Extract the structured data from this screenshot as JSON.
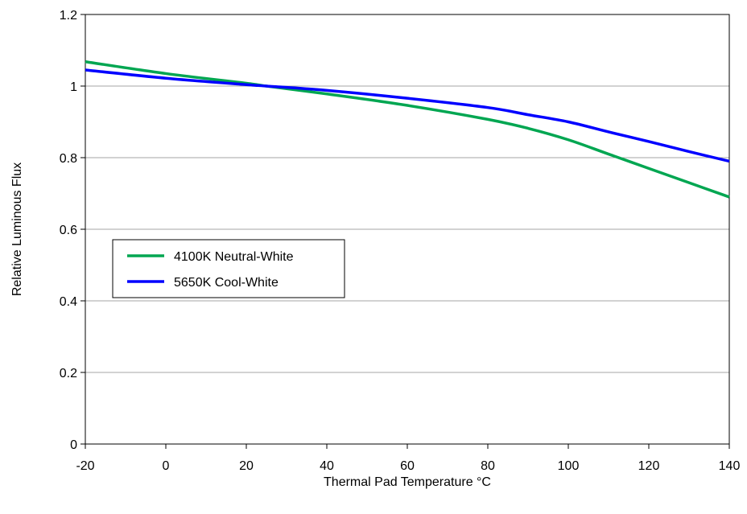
{
  "chart_data": {
    "type": "line",
    "title": "",
    "xlabel": "Thermal Pad Temperature °C",
    "ylabel": "Relative Luminous Flux",
    "xlim": [
      -20,
      140
    ],
    "ylim": [
      0,
      1.2
    ],
    "xticks": [
      -20,
      0,
      20,
      40,
      60,
      80,
      100,
      120,
      140
    ],
    "xtick_labels": [
      "-20",
      "0",
      "20",
      "40",
      "60",
      "80",
      "100",
      "120",
      "140"
    ],
    "yticks": [
      0,
      0.2,
      0.4,
      0.6,
      0.8,
      1,
      1.2
    ],
    "ytick_labels": [
      "0",
      "0.2",
      "0.4",
      "0.6",
      "0.8",
      "1",
      "1.2"
    ],
    "grid": "horizontal",
    "legend_position": "middle-left",
    "series": [
      {
        "name": "4100K Neutral-White",
        "color": "#00a651",
        "x": [
          -20,
          0,
          20,
          25,
          40,
          60,
          80,
          90,
          100,
          110,
          120,
          130,
          140
        ],
        "y": [
          1.068,
          1.035,
          1.008,
          1.0,
          0.978,
          0.946,
          0.907,
          0.882,
          0.85,
          0.81,
          0.77,
          0.73,
          0.69
        ]
      },
      {
        "name": "5650K Cool-White",
        "color": "#0000ff",
        "x": [
          -20,
          0,
          20,
          25,
          40,
          60,
          80,
          90,
          100,
          110,
          120,
          130,
          140
        ],
        "y": [
          1.045,
          1.022,
          1.004,
          1.0,
          0.988,
          0.966,
          0.94,
          0.92,
          0.9,
          0.872,
          0.845,
          0.817,
          0.79
        ]
      }
    ]
  }
}
